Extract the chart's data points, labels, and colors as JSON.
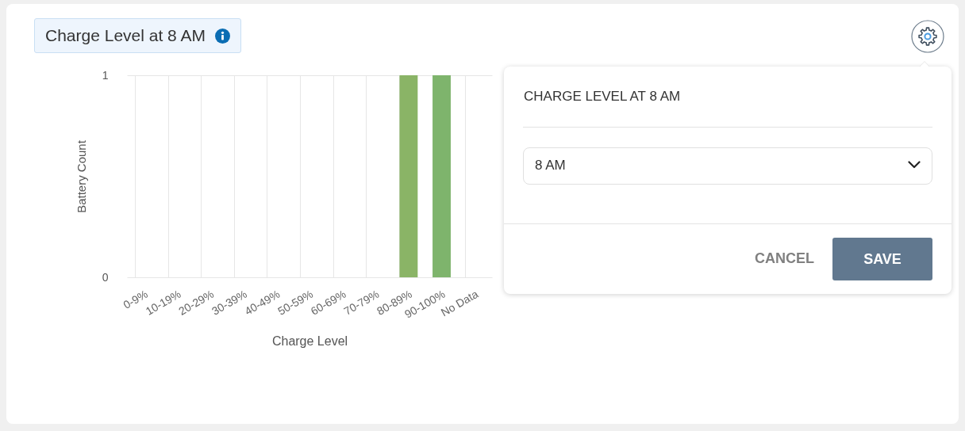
{
  "chart_data": {
    "type": "bar",
    "title": "Charge Level at 8 AM",
    "xlabel": "Charge Level",
    "ylabel": "Battery Count",
    "categories": [
      "0-9%",
      "10-19%",
      "20-29%",
      "30-39%",
      "40-49%",
      "50-59%",
      "60-69%",
      "70-79%",
      "80-89%",
      "90-100%",
      "No Data"
    ],
    "values": [
      0,
      0,
      0,
      0,
      0,
      0,
      0,
      0,
      1,
      1,
      0
    ],
    "colors": [
      "#8ab466",
      "#8ab466",
      "#8ab466",
      "#8ab466",
      "#8ab466",
      "#8ab466",
      "#8ab466",
      "#8ab466",
      "#8ab466",
      "#7eb46c",
      "#8ab466"
    ],
    "ylim": [
      0,
      1
    ],
    "yticks": [
      0,
      1
    ],
    "grid": true,
    "annotations": [
      "CHARGE LEVEL AT 8 AM",
      "8 AM",
      "CANCEL",
      "SAVE"
    ]
  }
}
